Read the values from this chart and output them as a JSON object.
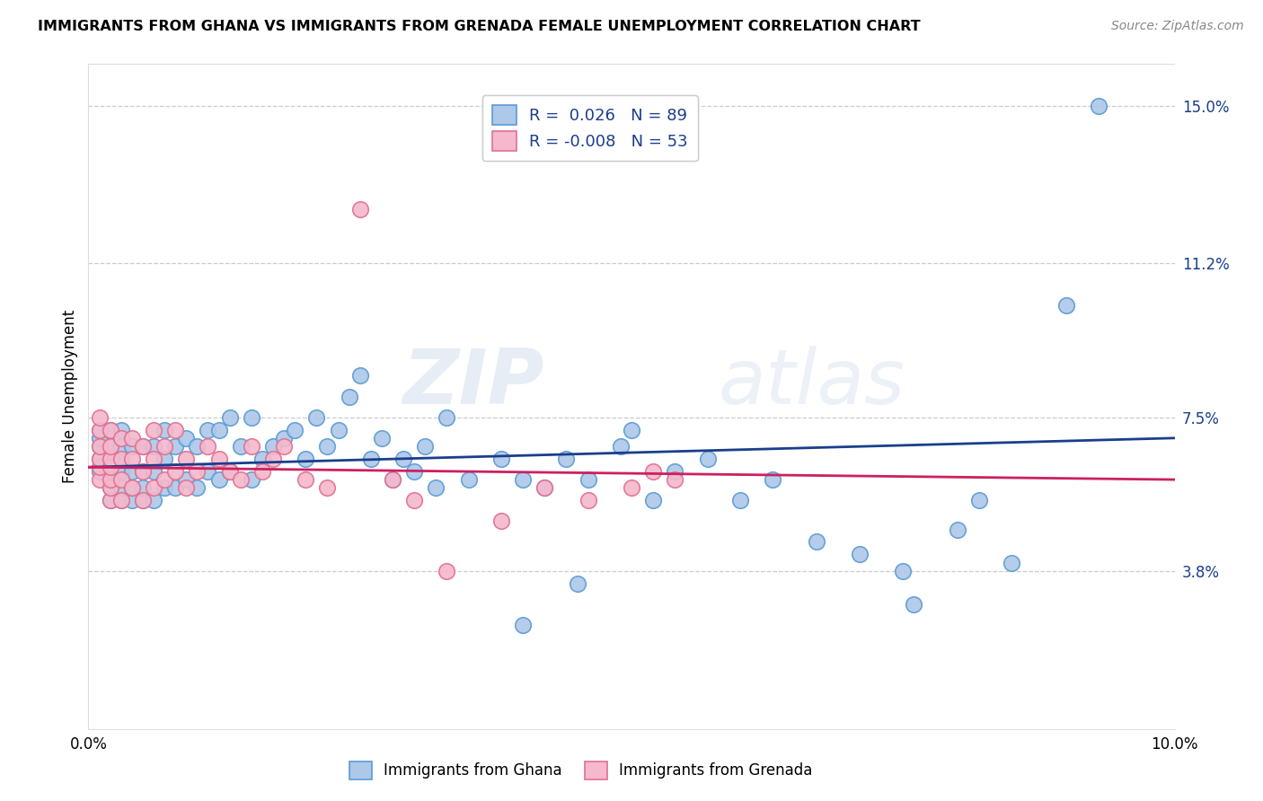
{
  "title": "IMMIGRANTS FROM GHANA VS IMMIGRANTS FROM GRENADA FEMALE UNEMPLOYMENT CORRELATION CHART",
  "source": "Source: ZipAtlas.com",
  "ylabel": "Female Unemployment",
  "xmin": 0.0,
  "xmax": 0.1,
  "ymin": 0.0,
  "ymax": 0.16,
  "yticks": [
    0.038,
    0.075,
    0.112,
    0.15
  ],
  "ytick_labels": [
    "3.8%",
    "7.5%",
    "11.2%",
    "15.0%"
  ],
  "xticks": [
    0.0,
    0.02,
    0.04,
    0.06,
    0.08,
    0.1
  ],
  "xtick_labels": [
    "0.0%",
    "",
    "",
    "",
    "",
    "10.0%"
  ],
  "ghana_color": "#adc8e8",
  "grenada_color": "#f5b8cc",
  "ghana_edge_color": "#5b9bd5",
  "grenada_edge_color": "#e07090",
  "trend_ghana_color": "#1a3e8c",
  "trend_grenada_color": "#cc2060",
  "legend_line1": "R =  0.026   N = 89",
  "legend_line2": "R = -0.008   N = 53",
  "watermark_zip": "ZIP",
  "watermark_atlas": "atlas",
  "ghana_x": [
    0.001,
    0.001,
    0.001,
    0.001,
    0.001,
    0.002,
    0.002,
    0.002,
    0.002,
    0.002,
    0.002,
    0.002,
    0.003,
    0.003,
    0.003,
    0.003,
    0.003,
    0.003,
    0.004,
    0.004,
    0.004,
    0.004,
    0.005,
    0.005,
    0.005,
    0.005,
    0.006,
    0.006,
    0.006,
    0.007,
    0.007,
    0.007,
    0.008,
    0.008,
    0.009,
    0.009,
    0.01,
    0.01,
    0.011,
    0.011,
    0.012,
    0.012,
    0.013,
    0.013,
    0.014,
    0.015,
    0.015,
    0.016,
    0.017,
    0.018,
    0.019,
    0.02,
    0.021,
    0.022,
    0.023,
    0.024,
    0.025,
    0.026,
    0.027,
    0.028,
    0.029,
    0.03,
    0.031,
    0.032,
    0.033,
    0.035,
    0.038,
    0.04,
    0.042,
    0.044,
    0.046,
    0.049,
    0.052,
    0.054,
    0.057,
    0.06,
    0.063,
    0.067,
    0.071,
    0.075,
    0.08,
    0.085,
    0.09,
    0.082,
    0.076,
    0.05,
    0.045,
    0.04,
    0.093
  ],
  "ghana_y": [
    0.062,
    0.065,
    0.068,
    0.07,
    0.072,
    0.055,
    0.058,
    0.06,
    0.063,
    0.065,
    0.068,
    0.072,
    0.055,
    0.058,
    0.062,
    0.065,
    0.068,
    0.072,
    0.055,
    0.058,
    0.062,
    0.068,
    0.055,
    0.058,
    0.062,
    0.068,
    0.055,
    0.062,
    0.068,
    0.058,
    0.065,
    0.072,
    0.058,
    0.068,
    0.06,
    0.07,
    0.058,
    0.068,
    0.062,
    0.072,
    0.06,
    0.072,
    0.062,
    0.075,
    0.068,
    0.06,
    0.075,
    0.065,
    0.068,
    0.07,
    0.072,
    0.065,
    0.075,
    0.068,
    0.072,
    0.08,
    0.085,
    0.065,
    0.07,
    0.06,
    0.065,
    0.062,
    0.068,
    0.058,
    0.075,
    0.06,
    0.065,
    0.06,
    0.058,
    0.065,
    0.06,
    0.068,
    0.055,
    0.062,
    0.065,
    0.055,
    0.06,
    0.045,
    0.042,
    0.038,
    0.048,
    0.04,
    0.102,
    0.055,
    0.03,
    0.072,
    0.035,
    0.025,
    0.15
  ],
  "grenada_x": [
    0.001,
    0.001,
    0.001,
    0.001,
    0.001,
    0.001,
    0.002,
    0.002,
    0.002,
    0.002,
    0.002,
    0.002,
    0.002,
    0.003,
    0.003,
    0.003,
    0.003,
    0.004,
    0.004,
    0.004,
    0.005,
    0.005,
    0.005,
    0.006,
    0.006,
    0.006,
    0.007,
    0.007,
    0.008,
    0.008,
    0.009,
    0.009,
    0.01,
    0.011,
    0.012,
    0.013,
    0.014,
    0.015,
    0.016,
    0.017,
    0.018,
    0.02,
    0.022,
    0.025,
    0.028,
    0.03,
    0.033,
    0.038,
    0.042,
    0.046,
    0.05,
    0.052,
    0.054
  ],
  "grenada_y": [
    0.06,
    0.063,
    0.065,
    0.068,
    0.072,
    0.075,
    0.055,
    0.058,
    0.06,
    0.063,
    0.065,
    0.068,
    0.072,
    0.055,
    0.06,
    0.065,
    0.07,
    0.058,
    0.065,
    0.07,
    0.055,
    0.062,
    0.068,
    0.058,
    0.065,
    0.072,
    0.06,
    0.068,
    0.062,
    0.072,
    0.058,
    0.065,
    0.062,
    0.068,
    0.065,
    0.062,
    0.06,
    0.068,
    0.062,
    0.065,
    0.068,
    0.06,
    0.058,
    0.125,
    0.06,
    0.055,
    0.038,
    0.05,
    0.058,
    0.055,
    0.058,
    0.062,
    0.06
  ],
  "ghana_trend_x": [
    0.0,
    0.1
  ],
  "ghana_trend_y": [
    0.063,
    0.07
  ],
  "grenada_trend_x": [
    0.0,
    0.1
  ],
  "grenada_trend_y": [
    0.063,
    0.06
  ],
  "scatter_size": 160,
  "title_fontsize": 11.5,
  "axis_fontsize": 12,
  "legend_fontsize": 13,
  "ylabel_fontsize": 12
}
